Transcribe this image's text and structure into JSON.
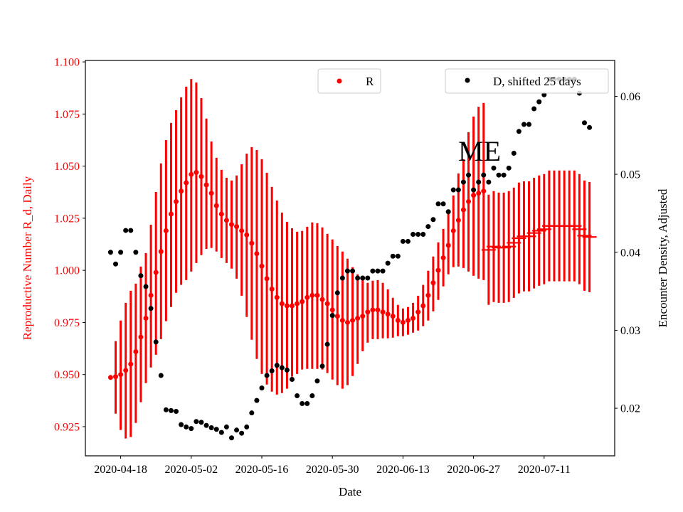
{
  "chart_data": {
    "type": "scatter",
    "title": "",
    "annotation": "ME",
    "xlabel": "Date",
    "ylabel_left": "Reproductive Number R_d, Daily",
    "ylabel_right": "Encounter Density, Adjusted",
    "xlim": [
      "2020-04-11",
      "2020-07-25"
    ],
    "ylim_left": [
      0.911,
      1.1007
    ],
    "ylim_right": [
      0.0139,
      0.0646
    ],
    "x_ticks": [
      "2020-04-18",
      "2020-05-02",
      "2020-05-16",
      "2020-05-30",
      "2020-06-13",
      "2020-06-27",
      "2020-07-11"
    ],
    "y_ticks_left": [
      "0.925",
      "0.950",
      "0.975",
      "1.000",
      "1.025",
      "1.050",
      "1.075",
      "1.100"
    ],
    "y_ticks_right": [
      "0.02",
      "0.03",
      "0.04",
      "0.05",
      "0.06"
    ],
    "colors": {
      "R": "#ff0000",
      "D": "#000000",
      "left_axis": "#ff0000"
    },
    "legend": [
      {
        "label": "R",
        "placement": "upper-center"
      },
      {
        "label": "D, shifted 25 days",
        "placement": "upper-right"
      }
    ],
    "x_start": "2020-04-16",
    "x_step_days": 1,
    "series": [
      {
        "name": "R",
        "axis": "left",
        "marker_dot_count": 75,
        "values": [
          0.9486,
          0.949,
          0.95,
          0.952,
          0.955,
          0.961,
          0.968,
          0.977,
          0.988,
          0.999,
          1.009,
          1.019,
          1.027,
          1.033,
          1.038,
          1.042,
          1.046,
          1.047,
          1.045,
          1.041,
          1.037,
          1.031,
          1.027,
          1.024,
          1.022,
          1.021,
          1.019,
          1.017,
          1.013,
          1.008,
          1.002,
          0.996,
          0.991,
          0.987,
          0.984,
          0.983,
          0.983,
          0.984,
          0.985,
          0.987,
          0.988,
          0.988,
          0.986,
          0.984,
          0.981,
          0.978,
          0.976,
          0.975,
          0.976,
          0.977,
          0.978,
          0.98,
          0.981,
          0.981,
          0.98,
          0.979,
          0.978,
          0.976,
          0.975,
          0.976,
          0.977,
          0.98,
          0.983,
          0.988,
          0.994,
          1.0,
          1.006,
          1.012,
          1.019,
          1.024,
          1.029,
          1.033,
          1.036,
          1.037,
          1.038,
          1.0098,
          1.0114,
          1.0109,
          1.0109,
          1.0114,
          1.0132,
          1.0154,
          1.0163,
          1.0163,
          1.0179,
          1.019,
          1.0197,
          1.0213,
          1.0213,
          1.0213,
          1.0213,
          1.0213,
          1.0213,
          1.0197,
          1.0166,
          1.016
        ],
        "lower": [
          0.9486,
          0.9312,
          0.9234,
          0.9193,
          0.92,
          0.9268,
          0.9367,
          0.9459,
          0.9534,
          0.9595,
          0.967,
          0.9756,
          0.9824,
          0.9892,
          0.993,
          0.9953,
          0.9994,
          1.0035,
          1.0073,
          1.0103,
          1.0107,
          1.009,
          1.0059,
          1.0035,
          1.0008,
          0.996,
          0.9878,
          0.9776,
          0.9667,
          0.9575,
          0.9503,
          0.9452,
          0.9418,
          0.9404,
          0.9411,
          0.9432,
          0.949,
          0.9503,
          0.9524,
          0.9527,
          0.9527,
          0.9527,
          0.9524,
          0.9507,
          0.9476,
          0.9449,
          0.9432,
          0.9449,
          0.9493,
          0.9551,
          0.9612,
          0.9653,
          0.967,
          0.967,
          0.9674,
          0.9674,
          0.9677,
          0.9684,
          0.9684,
          0.9691,
          0.9701,
          0.9711,
          0.9732,
          0.9759,
          0.9803,
          0.9858,
          0.9923,
          0.9981,
          1.0015,
          1.0018,
          1.0011,
          0.9994,
          0.9974,
          0.996,
          0.9953,
          0.9834,
          0.9848,
          0.9844,
          0.9844,
          0.9848,
          0.9868,
          0.9889,
          0.9899,
          0.9899,
          0.9913,
          0.9926,
          0.9933,
          0.9947,
          0.9947,
          0.9947,
          0.9947,
          0.9947,
          0.9947,
          0.9933,
          0.9902,
          0.9895
        ],
        "upper": [
          0.9486,
          0.966,
          0.9759,
          0.9844,
          0.9902,
          0.9936,
          1.0018,
          1.0083,
          1.0219,
          1.0376,
          1.0513,
          1.0625,
          1.0707,
          1.0768,
          1.083,
          1.0881,
          1.0918,
          1.0901,
          1.0826,
          1.0728,
          1.0618,
          1.054,
          1.0482,
          1.0444,
          1.0431,
          1.0455,
          1.0509,
          1.056,
          1.0591,
          1.0577,
          1.0533,
          1.0468,
          1.04,
          1.0335,
          1.0277,
          1.0233,
          1.0202,
          1.0185,
          1.0189,
          1.0209,
          1.023,
          1.0226,
          1.0206,
          1.0175,
          1.0148,
          1.0117,
          1.009,
          1.0056,
          1.0015,
          0.9981,
          0.996,
          0.994,
          0.995,
          0.9953,
          0.994,
          0.9909,
          0.9868,
          0.9834,
          0.9817,
          0.9824,
          0.9844,
          0.9878,
          0.993,
          0.9998,
          1.0066,
          1.0134,
          1.0199,
          1.0274,
          1.0359,
          1.0465,
          1.0533,
          1.0663,
          1.0738,
          1.0785,
          1.0803,
          1.0363,
          1.038,
          1.0373,
          1.0373,
          1.038,
          1.0397,
          1.0421,
          1.0427,
          1.0427,
          1.0444,
          1.0455,
          1.0462,
          1.0479,
          1.0479,
          1.0479,
          1.0479,
          1.0479,
          1.0479,
          1.0462,
          1.0431,
          1.0424
        ]
      },
      {
        "name": "D, shifted 25 days",
        "axis": "right",
        "values": [
          0.04,
          0.0385,
          0.04,
          0.0428,
          0.0428,
          0.04,
          0.037,
          0.0356,
          0.0328,
          0.0285,
          0.0242,
          0.0198,
          0.0197,
          0.0196,
          0.0179,
          0.0176,
          0.0174,
          0.0183,
          0.0182,
          0.0178,
          0.0175,
          0.0173,
          0.0169,
          0.0176,
          0.0162,
          0.0172,
          0.0168,
          0.0176,
          0.0194,
          0.021,
          0.0226,
          0.0242,
          0.0248,
          0.0255,
          0.0252,
          0.0249,
          0.0237,
          0.0216,
          0.0206,
          0.0206,
          0.0216,
          0.0235,
          0.0254,
          0.0282,
          0.0319,
          0.0348,
          0.0367,
          0.0376,
          0.0376,
          0.0367,
          0.0367,
          0.0367,
          0.0376,
          0.0376,
          0.0376,
          0.0386,
          0.0395,
          0.0395,
          0.0414,
          0.0414,
          0.0423,
          0.0423,
          0.0423,
          0.0433,
          0.0442,
          0.0462,
          0.0462,
          0.0452,
          0.048,
          0.048,
          0.049,
          0.0499,
          0.048,
          0.049,
          0.0499,
          0.049,
          0.0508,
          0.0499,
          0.0499,
          0.0508,
          0.0527,
          0.0555,
          0.0564,
          0.0564,
          0.0584,
          0.0593,
          0.0602,
          0.0622,
          0.0622,
          0.0622,
          0.0622,
          0.0622,
          0.0622,
          0.0604,
          0.0566,
          0.056
        ]
      }
    ]
  }
}
